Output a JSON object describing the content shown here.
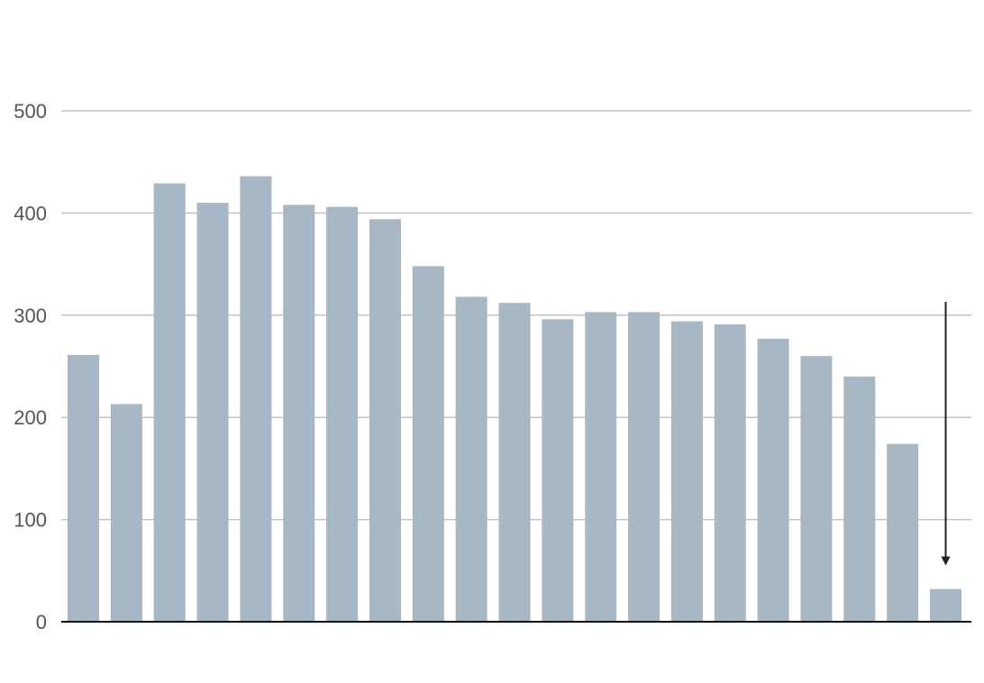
{
  "chart_data": {
    "type": "bar",
    "title": "",
    "xlabel": "",
    "ylabel": "",
    "ylim": [
      0,
      500
    ],
    "yticks": [
      0,
      100,
      200,
      300,
      400,
      500
    ],
    "grid": true,
    "values": [
      261,
      213,
      429,
      410,
      436,
      408,
      406,
      394,
      348,
      318,
      312,
      296,
      303,
      303,
      294,
      291,
      277,
      260,
      240,
      174,
      32
    ],
    "bar_color": "#a8b7c4",
    "annotation": {
      "type": "down-arrow",
      "target_index": 20,
      "from_value": 313,
      "to_value": 55,
      "color": "#222222"
    }
  }
}
